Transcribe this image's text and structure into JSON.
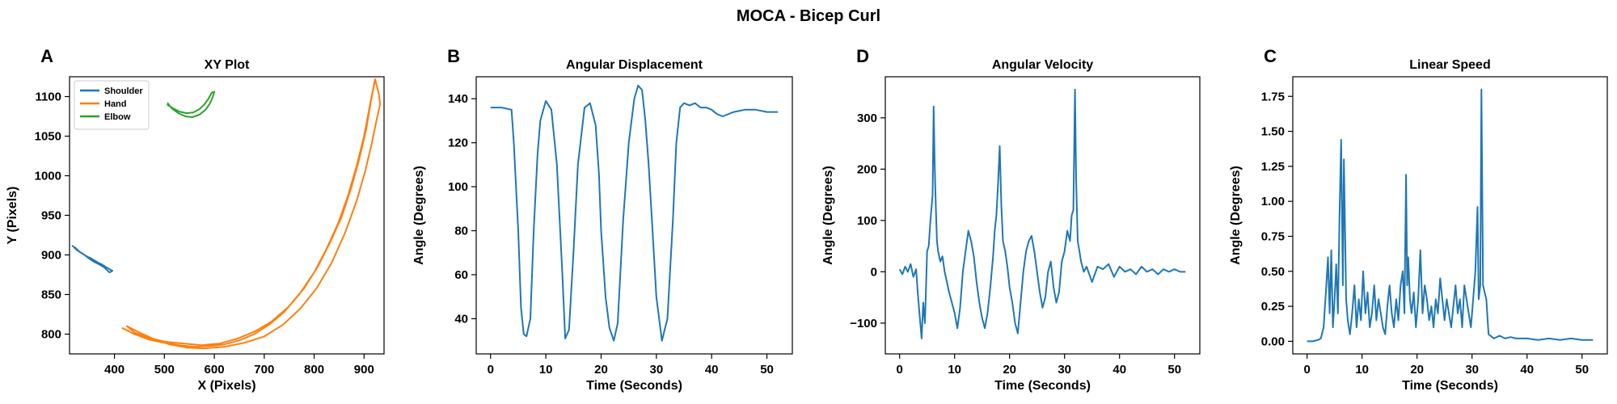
{
  "suptitle": "MOCA - Bicep Curl",
  "colors": {
    "blue": "#1f77b4",
    "orange": "#ff7f0e",
    "green": "#2ca02c"
  },
  "chart_data": [
    {
      "panel": "A",
      "type": "line",
      "title": "XY Plot",
      "xlabel": "X (Pixels)",
      "ylabel": "Y (Pixels)",
      "xlim": [
        310,
        940
      ],
      "ylim": [
        775,
        1125
      ],
      "xticks": [
        400,
        500,
        600,
        700,
        800,
        900
      ],
      "yticks": [
        800,
        850,
        900,
        950,
        1000,
        1050,
        1100
      ],
      "legend_position": "upper-left",
      "series": [
        {
          "name": "Shoulder",
          "color": "#1f77b4",
          "points": [
            [
              315,
              912
            ],
            [
              325,
              906
            ],
            [
              335,
              902
            ],
            [
              345,
              898
            ],
            [
              352,
              896
            ],
            [
              360,
              893
            ],
            [
              368,
              890
            ],
            [
              375,
              888
            ],
            [
              382,
              885
            ],
            [
              390,
              882
            ],
            [
              396,
              880
            ],
            [
              390,
              878
            ],
            [
              380,
              884
            ],
            [
              370,
              888
            ],
            [
              360,
              891
            ],
            [
              350,
              895
            ],
            [
              340,
              900
            ],
            [
              330,
              904
            ],
            [
              320,
              910
            ]
          ]
        },
        {
          "name": "Hand",
          "color": "#ff7f0e",
          "points": [
            [
              415,
              808
            ],
            [
              440,
              800
            ],
            [
              470,
              793
            ],
            [
              500,
              789
            ],
            [
              530,
              786
            ],
            [
              560,
              784
            ],
            [
              590,
              785
            ],
            [
              620,
              787
            ],
            [
              650,
              792
            ],
            [
              680,
              800
            ],
            [
              710,
              812
            ],
            [
              740,
              828
            ],
            [
              770,
              850
            ],
            [
              800,
              878
            ],
            [
              825,
              908
            ],
            [
              848,
              940
            ],
            [
              868,
              975
            ],
            [
              885,
              1012
            ],
            [
              900,
              1050
            ],
            [
              912,
              1090
            ],
            [
              922,
              1122
            ],
            [
              930,
              1102
            ],
            [
              932,
              1090
            ],
            [
              925,
              1070
            ],
            [
              915,
              1040
            ],
            [
              902,
              1005
            ],
            [
              885,
              968
            ],
            [
              862,
              928
            ],
            [
              835,
              890
            ],
            [
              805,
              858
            ],
            [
              772,
              832
            ],
            [
              738,
              812
            ],
            [
              700,
              797
            ],
            [
              660,
              789
            ],
            [
              620,
              784
            ],
            [
              580,
              782
            ],
            [
              545,
              783
            ],
            [
              510,
              787
            ],
            [
              478,
              794
            ],
            [
              450,
              802
            ],
            [
              425,
              810
            ],
            [
              440,
              802
            ],
            [
              470,
              795
            ],
            [
              505,
              790
            ],
            [
              540,
              788
            ],
            [
              575,
              786
            ],
            [
              610,
              788
            ],
            [
              645,
              794
            ],
            [
              680,
              803
            ],
            [
              715,
              816
            ],
            [
              748,
              834
            ],
            [
              780,
              858
            ],
            [
              808,
              886
            ],
            [
              832,
              916
            ],
            [
              855,
              948
            ],
            [
              874,
              984
            ],
            [
              890,
              1020
            ],
            [
              904,
              1058
            ],
            [
              914,
              1095
            ],
            [
              921,
              1118
            ]
          ]
        },
        {
          "name": "Elbow",
          "color": "#2ca02c",
          "points": [
            [
              505,
              1090
            ],
            [
              518,
              1085
            ],
            [
              530,
              1081
            ],
            [
              545,
              1079
            ],
            [
              558,
              1080
            ],
            [
              570,
              1084
            ],
            [
              580,
              1090
            ],
            [
              588,
              1097
            ],
            [
              595,
              1105
            ],
            [
              600,
              1106
            ],
            [
              596,
              1098
            ],
            [
              590,
              1090
            ],
            [
              582,
              1083
            ],
            [
              570,
              1077
            ],
            [
              556,
              1074
            ],
            [
              542,
              1075
            ],
            [
              528,
              1079
            ],
            [
              515,
              1085
            ],
            [
              506,
              1092
            ]
          ]
        }
      ]
    },
    {
      "panel": "B",
      "type": "line",
      "title": "Angular Displacement",
      "xlabel": "Time (Seconds)",
      "ylabel": "Angle (Degrees)",
      "xlim": [
        -2.6,
        54.6
      ],
      "ylim": [
        24,
        150
      ],
      "xticks": [
        0,
        10,
        20,
        30,
        40,
        50
      ],
      "yticks": [
        40,
        60,
        80,
        100,
        120,
        140
      ],
      "series": [
        {
          "name": "",
          "color": "#1f77b4",
          "x": [
            0,
            1,
            2,
            3.8,
            4.2,
            5,
            5.5,
            6,
            6.5,
            7.2,
            7.8,
            8.5,
            9,
            10,
            11,
            12,
            13,
            13.5,
            14.2,
            15,
            15.8,
            17,
            18,
            19,
            19.6,
            20,
            20.8,
            21.5,
            22.3,
            23,
            24,
            25,
            26,
            26.7,
            27.4,
            28,
            28.6,
            29.3,
            30,
            31,
            32,
            33,
            33.6,
            34.3,
            35,
            36,
            37,
            38,
            39,
            40,
            41,
            42,
            44,
            46,
            48,
            50,
            52
          ],
          "values": [
            136,
            136,
            136,
            135,
            120,
            80,
            45,
            33,
            32,
            40,
            80,
            115,
            130,
            139,
            135,
            110,
            60,
            31,
            35,
            70,
            110,
            136,
            138,
            128,
            106,
            80,
            50,
            36,
            30,
            38,
            85,
            120,
            140,
            146,
            144,
            130,
            110,
            80,
            50,
            30,
            40,
            85,
            120,
            136,
            138,
            137,
            138,
            136,
            136,
            135,
            133,
            132,
            134,
            135,
            135,
            134,
            134
          ]
        }
      ]
    },
    {
      "panel": "D",
      "type": "line",
      "title": "Angular Velocity",
      "xlabel": "Time (Seconds)",
      "ylabel": "Angle (Degrees)",
      "xlim": [
        -2.6,
        54.6
      ],
      "ylim": [
        -160,
        380
      ],
      "xticks": [
        0,
        10,
        20,
        30,
        40,
        50
      ],
      "yticks": [
        -100,
        0,
        100,
        200,
        300
      ],
      "series": [
        {
          "name": "",
          "color": "#1f77b4",
          "x": [
            0,
            0.5,
            1,
            1.5,
            2,
            2.5,
            3,
            3.3,
            3.6,
            4,
            4.3,
            4.6,
            5,
            5.3,
            5.6,
            6,
            6.2,
            6.4,
            6.6,
            6.8,
            7,
            7.4,
            7.8,
            8.2,
            8.6,
            9,
            9.5,
            10,
            10.5,
            11,
            11.5,
            12,
            12.5,
            13,
            13.5,
            14,
            14.5,
            15,
            15.5,
            16,
            16.5,
            17,
            17.3,
            17.6,
            17.9,
            18.2,
            18.5,
            18.8,
            19.2,
            19.6,
            20,
            20.5,
            21,
            21.5,
            22,
            22.5,
            23,
            23.5,
            24,
            24.5,
            25,
            25.5,
            26,
            26.5,
            27,
            27.5,
            28,
            28.5,
            29,
            29.5,
            30,
            30.5,
            31,
            31.3,
            31.6,
            31.9,
            32.1,
            32.4,
            32.7,
            33,
            33.5,
            34,
            35,
            36,
            37,
            38,
            39,
            40,
            41,
            42,
            43,
            44,
            45,
            46,
            47,
            48,
            49,
            50,
            51,
            52
          ],
          "values": [
            5,
            -5,
            10,
            0,
            15,
            -10,
            5,
            -40,
            -80,
            -130,
            -60,
            -100,
            40,
            50,
            100,
            150,
            322,
            200,
            120,
            60,
            40,
            20,
            30,
            0,
            -20,
            -40,
            -60,
            -80,
            -110,
            -70,
            0,
            40,
            80,
            60,
            30,
            -20,
            -60,
            -90,
            -110,
            -80,
            -30,
            30,
            80,
            110,
            170,
            245,
            130,
            60,
            40,
            10,
            -30,
            -60,
            -100,
            -120,
            -60,
            0,
            40,
            60,
            70,
            40,
            0,
            -40,
            -70,
            -50,
            0,
            20,
            -30,
            -60,
            -40,
            20,
            40,
            80,
            60,
            110,
            120,
            355,
            180,
            60,
            40,
            20,
            0,
            10,
            -20,
            10,
            5,
            15,
            -10,
            10,
            0,
            5,
            -5,
            10,
            0,
            5,
            -5,
            5,
            0,
            5,
            0,
            0
          ]
        }
      ]
    },
    {
      "panel": "C",
      "type": "line",
      "title": "Linear Speed",
      "xlabel": "Time (Seconds)",
      "ylabel": "Angle (Degrees)",
      "xlim": [
        -2.6,
        54.6
      ],
      "ylim": [
        -0.09,
        1.89
      ],
      "xticks": [
        0,
        10,
        20,
        30,
        40,
        50
      ],
      "yticks": [
        0.0,
        0.25,
        0.5,
        0.75,
        1.0,
        1.25,
        1.5,
        1.75
      ],
      "series": [
        {
          "name": "",
          "color": "#1f77b4",
          "x": [
            0,
            1,
            2,
            2.5,
            3,
            3.5,
            3.8,
            4.1,
            4.4,
            4.7,
            5,
            5.3,
            5.6,
            5.9,
            6.2,
            6.5,
            6.7,
            6.9,
            7.1,
            7.4,
            7.8,
            8.2,
            8.6,
            9,
            9.4,
            9.8,
            10.2,
            10.6,
            11,
            11.4,
            11.8,
            12.2,
            12.6,
            13,
            13.4,
            13.8,
            14.2,
            14.6,
            15,
            15.4,
            15.8,
            16.2,
            16.6,
            17,
            17.4,
            17.7,
            18,
            18.2,
            18.4,
            18.7,
            19,
            19.4,
            19.8,
            20.2,
            20.6,
            21,
            21.4,
            21.8,
            22.2,
            22.6,
            23,
            23.4,
            23.8,
            24.2,
            24.6,
            25,
            25.4,
            25.8,
            26.2,
            26.6,
            27,
            27.4,
            27.8,
            28.2,
            28.6,
            29,
            29.4,
            29.8,
            30.2,
            30.6,
            31,
            31.2,
            31.5,
            31.7,
            32,
            32.3,
            32.6,
            33,
            34,
            35,
            36,
            37,
            38,
            40,
            42,
            44,
            46,
            48,
            50,
            52
          ],
          "values": [
            0,
            0,
            0.01,
            0.02,
            0.1,
            0.4,
            0.6,
            0.2,
            0.65,
            0.1,
            0.3,
            0.55,
            0.2,
            0.9,
            1.44,
            0.4,
            1.3,
            0.8,
            0.3,
            0.15,
            0.05,
            0.2,
            0.4,
            0.1,
            0.3,
            0.15,
            0.5,
            0.2,
            0.35,
            0.1,
            0.2,
            0.4,
            0.15,
            0.3,
            0.2,
            0.1,
            0.05,
            0.25,
            0.4,
            0.2,
            0.1,
            0.3,
            0.15,
            0.4,
            0.5,
            0.2,
            1.19,
            0.4,
            0.6,
            0.3,
            0.2,
            0.35,
            0.1,
            0.3,
            0.65,
            0.2,
            0.4,
            0.3,
            0.15,
            0.25,
            0.1,
            0.3,
            0.2,
            0.45,
            0.3,
            0.15,
            0.3,
            0.2,
            0.1,
            0.25,
            0.4,
            0.2,
            0.3,
            0.1,
            0.4,
            0.3,
            0.2,
            0.1,
            0.3,
            0.5,
            0.96,
            0.3,
            0.4,
            1.8,
            0.4,
            0.35,
            0.3,
            0.05,
            0.02,
            0.04,
            0.02,
            0.03,
            0.02,
            0.02,
            0.01,
            0.02,
            0.01,
            0.02,
            0.01,
            0.01
          ]
        }
      ]
    }
  ]
}
